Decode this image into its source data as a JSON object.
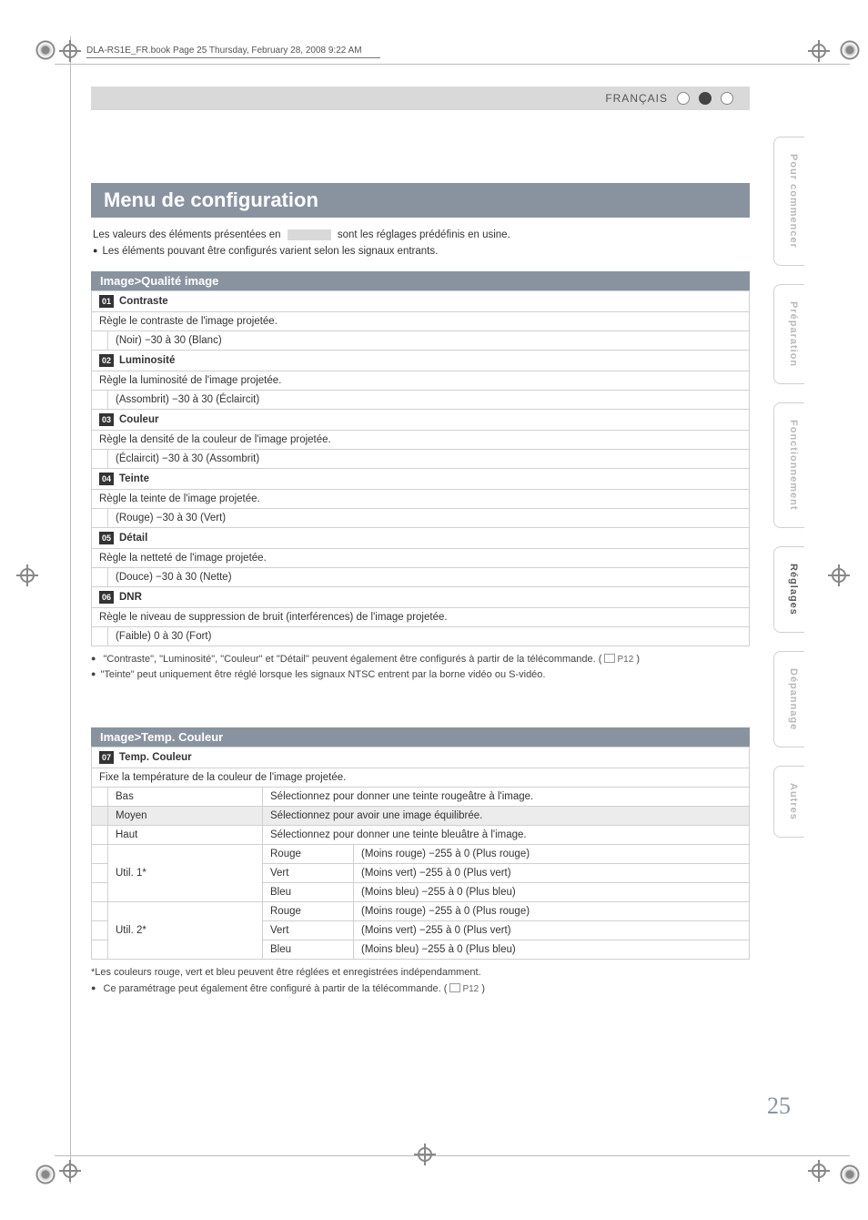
{
  "book_header": "DLA-RS1E_FR.book  Page 25  Thursday, February 28, 2008  9:22 AM",
  "language_label": "FRANÇAIS",
  "page_number": "25",
  "title": "Menu de configuration",
  "intro_line1_a": "Les valeurs des éléments présentées en ",
  "intro_line1_b": " sont les réglages prédéfinis en usine.",
  "intro_line2": "Les éléments pouvant être configurés varient selon les signaux entrants.",
  "section1": {
    "header": "Image>Qualité image",
    "items": [
      {
        "num": "01",
        "name": "Contraste",
        "desc": "Règle le contraste de l'image projetée.",
        "range": "(Noir) −30 à 30 (Blanc)"
      },
      {
        "num": "02",
        "name": "Luminosité",
        "desc": "Règle la luminosité de l'image projetée.",
        "range": "(Assombrit) −30 à 30 (Éclaircit)"
      },
      {
        "num": "03",
        "name": "Couleur",
        "desc": "Règle la densité de la couleur de l'image projetée.",
        "range": "(Éclaircit) −30 à 30 (Assombrit)"
      },
      {
        "num": "04",
        "name": "Teinte",
        "desc": "Règle la teinte de l'image projetée.",
        "range": "(Rouge) −30 à 30 (Vert)"
      },
      {
        "num": "05",
        "name": "Détail",
        "desc": "Règle la netteté de l'image projetée.",
        "range": "(Douce) −30 à 30 (Nette)"
      },
      {
        "num": "06",
        "name": "DNR",
        "desc": "Règle le niveau de suppression de bruit (interférences) de l'image projetée.",
        "range": "(Faible) 0 à 30 (Fort)"
      }
    ],
    "note1": "\"Contraste\", \"Luminosité\", \"Couleur\" et \"Détail\" peuvent également être configurés à partir de la télécommande. (",
    "note1_ref": "P12",
    "note1_end": ")",
    "note2": "\"Teinte\" peut uniquement être réglé lorsque les signaux NTSC entrent par la borne vidéo ou S-vidéo."
  },
  "section2": {
    "header": "Image>Temp. Couleur",
    "item_num": "07",
    "item_name": "Temp. Couleur",
    "desc": "Fixe la température de la couleur de l'image projetée.",
    "rows_simple": [
      {
        "label": "Bas",
        "text": "Sélectionnez pour donner une teinte rougeâtre à l'image.",
        "shaded": false
      },
      {
        "label": "Moyen",
        "text": "Sélectionnez pour avoir une image équilibrée.",
        "shaded": true
      },
      {
        "label": "Haut",
        "text": "Sélectionnez pour donner une teinte bleuâtre à l'image.",
        "shaded": false
      }
    ],
    "util_groups": [
      {
        "label": "Util. 1*",
        "channels": [
          {
            "name": "Rouge",
            "range": "(Moins rouge) −255 à 0 (Plus rouge)"
          },
          {
            "name": "Vert",
            "range": "(Moins vert) −255 à 0 (Plus vert)"
          },
          {
            "name": "Bleu",
            "range": "(Moins bleu) −255 à 0 (Plus bleu)"
          }
        ]
      },
      {
        "label": "Util. 2*",
        "channels": [
          {
            "name": "Rouge",
            "range": "(Moins rouge) −255 à 0 (Plus rouge)"
          },
          {
            "name": "Vert",
            "range": "(Moins vert) −255 à 0 (Plus vert)"
          },
          {
            "name": "Bleu",
            "range": "(Moins bleu) −255 à 0 (Plus bleu)"
          }
        ]
      }
    ],
    "footnote": "*Les couleurs rouge, vert et bleu peuvent être réglées et enregistrées indépendamment.",
    "note": "Ce paramétrage peut également être configuré à partir de la télécommande. (",
    "note_ref": "P12",
    "note_end": ")"
  },
  "tabs": [
    {
      "label": "Pour commencer",
      "active": false
    },
    {
      "label": "Préparation",
      "active": false
    },
    {
      "label": "Fonctionnement",
      "active": false
    },
    {
      "label": "Réglages",
      "active": true
    },
    {
      "label": "Dépannage",
      "active": false
    },
    {
      "label": "Autres",
      "active": false
    }
  ]
}
